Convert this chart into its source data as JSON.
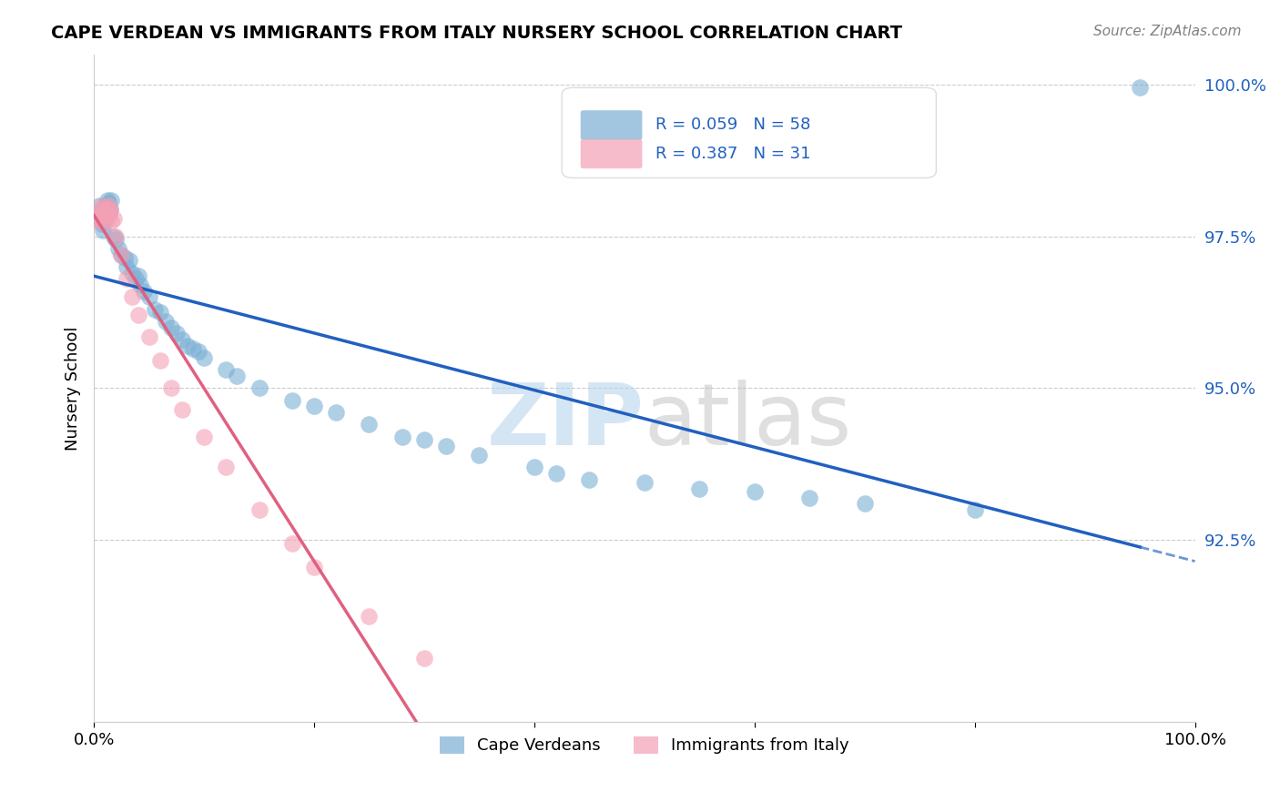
{
  "title": "CAPE VERDEAN VS IMMIGRANTS FROM ITALY NURSERY SCHOOL CORRELATION CHART",
  "source_text": "Source: ZipAtlas.com",
  "ylabel": "Nursery School",
  "watermark_zip": "ZIP",
  "watermark_atlas": "atlas",
  "xlim": [
    0.0,
    1.0
  ],
  "ylim": [
    0.895,
    1.005
  ],
  "yticks": [
    0.925,
    0.95,
    0.975,
    1.0
  ],
  "ytick_labels": [
    "92.5%",
    "95.0%",
    "97.5%",
    "100.0%"
  ],
  "xticks": [
    0.0,
    0.2,
    0.4,
    0.6,
    0.8,
    1.0
  ],
  "xtick_labels": [
    "0.0%",
    "",
    "",
    "",
    "",
    "100.0%"
  ],
  "R_blue": 0.059,
  "N_blue": 58,
  "R_pink": 0.387,
  "N_pink": 31,
  "blue_color": "#7bafd4",
  "pink_color": "#f4a0b5",
  "trend_blue": "#2060c0",
  "trend_pink": "#e06080",
  "blue_x": [
    0.002,
    0.004,
    0.005,
    0.006,
    0.007,
    0.008,
    0.009,
    0.01,
    0.011,
    0.012,
    0.013,
    0.014,
    0.015,
    0.016,
    0.018,
    0.02,
    0.022,
    0.025,
    0.028,
    0.03,
    0.032,
    0.035,
    0.038,
    0.04,
    0.042,
    0.045,
    0.05,
    0.055,
    0.06,
    0.065,
    0.07,
    0.075,
    0.08,
    0.085,
    0.09,
    0.095,
    0.1,
    0.12,
    0.13,
    0.15,
    0.18,
    0.2,
    0.22,
    0.25,
    0.28,
    0.3,
    0.32,
    0.35,
    0.4,
    0.42,
    0.45,
    0.5,
    0.55,
    0.6,
    0.65,
    0.7,
    0.8,
    0.95
  ],
  "blue_y": [
    0.9785,
    0.978,
    0.98,
    0.979,
    0.977,
    0.976,
    0.9775,
    0.979,
    0.98,
    0.981,
    0.9805,
    0.979,
    0.9795,
    0.981,
    0.975,
    0.9745,
    0.973,
    0.972,
    0.9715,
    0.97,
    0.971,
    0.969,
    0.968,
    0.9685,
    0.967,
    0.966,
    0.965,
    0.963,
    0.9625,
    0.961,
    0.96,
    0.959,
    0.958,
    0.957,
    0.9565,
    0.956,
    0.955,
    0.953,
    0.952,
    0.95,
    0.948,
    0.947,
    0.946,
    0.944,
    0.942,
    0.9415,
    0.9405,
    0.939,
    0.937,
    0.936,
    0.935,
    0.9345,
    0.9335,
    0.933,
    0.932,
    0.931,
    0.93,
    0.9995
  ],
  "pink_x": [
    0.002,
    0.004,
    0.005,
    0.006,
    0.007,
    0.008,
    0.009,
    0.01,
    0.011,
    0.012,
    0.013,
    0.014,
    0.015,
    0.016,
    0.018,
    0.02,
    0.025,
    0.03,
    0.035,
    0.04,
    0.05,
    0.06,
    0.07,
    0.08,
    0.1,
    0.12,
    0.15,
    0.18,
    0.2,
    0.25,
    0.3
  ],
  "pink_y": [
    0.978,
    0.9775,
    0.9785,
    0.9795,
    0.98,
    0.9785,
    0.979,
    0.9785,
    0.9775,
    0.9795,
    0.98,
    0.9785,
    0.9795,
    0.9775,
    0.978,
    0.975,
    0.972,
    0.968,
    0.965,
    0.962,
    0.9585,
    0.9545,
    0.95,
    0.9465,
    0.942,
    0.937,
    0.93,
    0.9245,
    0.9205,
    0.9125,
    0.9055
  ]
}
